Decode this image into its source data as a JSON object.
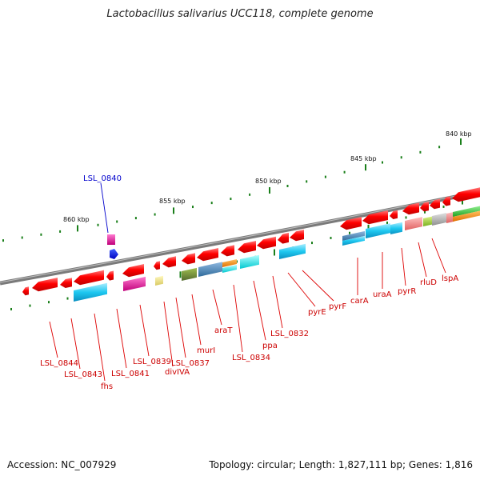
{
  "title": "Lactobacillus salivarius UCC118, complete genome",
  "footer": {
    "accession": "Accession: NC_007929",
    "stats": "Topology: circular; Length: 1,827,111 bp; Genes: 1,816"
  },
  "kbp_marks": [
    "860 kbp",
    "855 kbp",
    "850 kbp",
    "845 kbp",
    "840 kbp"
  ],
  "highlight_gene": "LSL_0840",
  "gene_labels": [
    "LSL_0844",
    "LSL_0843",
    "fhs",
    "LSL_0841",
    "LSL_0839",
    "divIVA",
    "LSL_0837",
    "murI",
    "araT",
    "LSL_0834",
    "ppa",
    "LSL_0832",
    "pyrE",
    "pyrF",
    "carA",
    "uraA",
    "pyrR",
    "rluD",
    "lspA"
  ],
  "colors": {
    "backbone": "#7a7a7a",
    "gene_forward": "#ff0000",
    "label": "#cc0000",
    "highlight": "#0000cc",
    "tick": "#1a7f1a",
    "cyan": "#1ec8f0",
    "magenta": "#e0129a",
    "olive": "#6b8e23",
    "steel": "#4682b4",
    "orange": "#ff8c00",
    "aqua": "#00e5ee",
    "pink": "#f08080",
    "lime": "#9acd32",
    "grey": "#b0b0b0",
    "pale": "#f0e68c"
  }
}
